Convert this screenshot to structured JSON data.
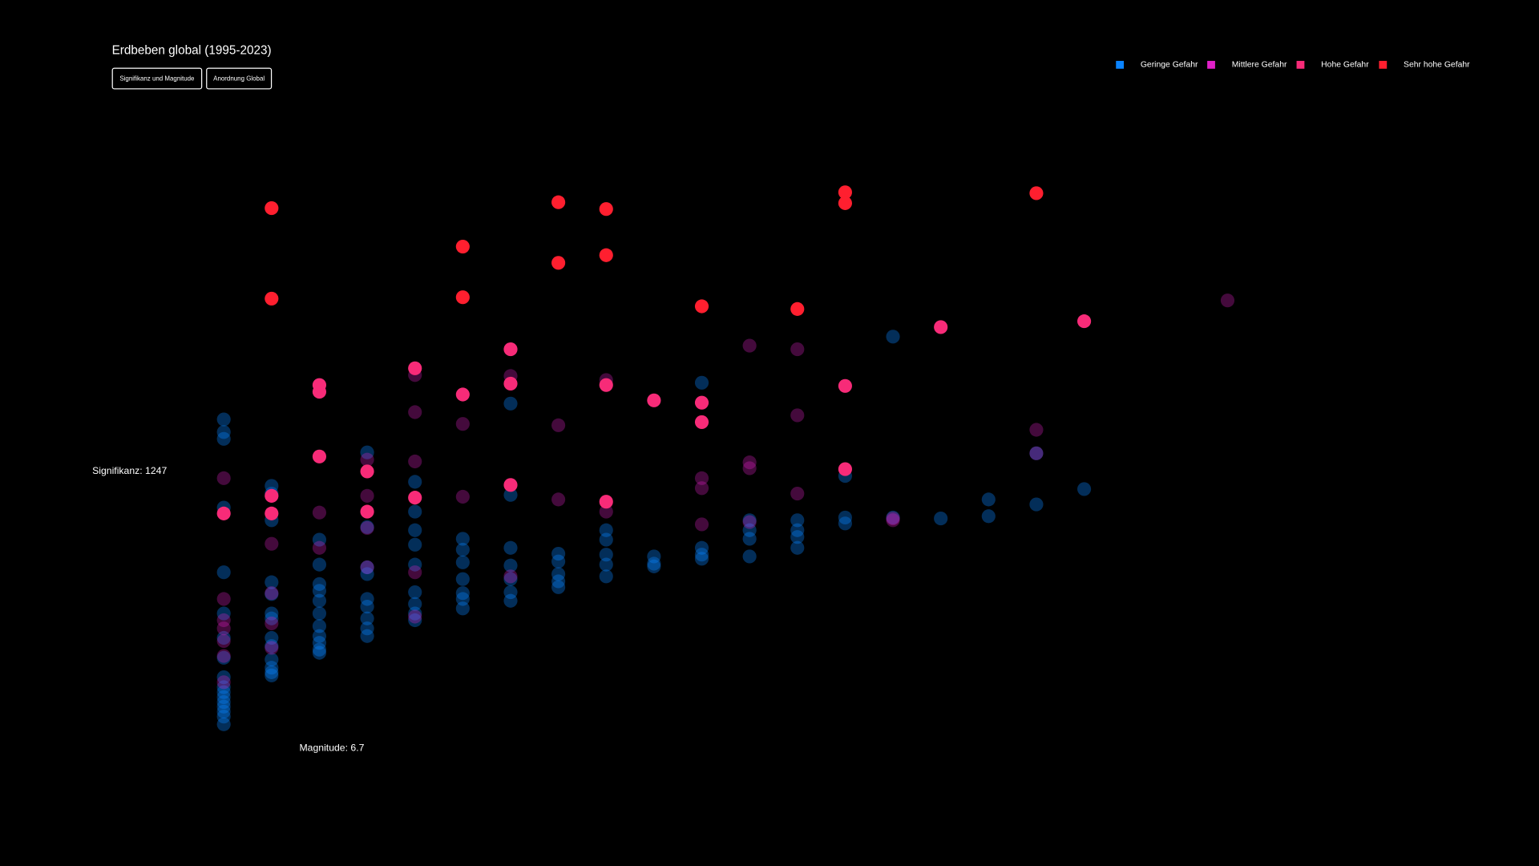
{
  "title": "Erdbeben global (1995-2023)",
  "controls": [
    "Signifikanz und Magnitude",
    "Anordnung Global"
  ],
  "chart_data": {
    "type": "scatter",
    "legend": "top-right",
    "xlim": [
      6.5,
      9.0
    ],
    "ylim": [
      600,
      2000
    ],
    "annotations": {
      "y": "Signifikanz: 1247",
      "x": "Magnitude: 6.7"
    },
    "series": [
      {
        "name": "Geringe Gefahr",
        "color": "#0a84ff",
        "x": [
          6.5,
          6.5,
          6.5,
          6.5,
          6.5,
          6.5,
          6.5,
          6.5,
          6.5,
          6.5,
          6.5,
          6.5,
          6.5,
          6.5,
          6.5,
          6.5,
          6.5,
          6.6,
          6.6,
          6.6,
          6.6,
          6.6,
          6.6,
          6.6,
          6.6,
          6.6,
          6.6,
          6.6,
          6.6,
          6.6,
          6.7,
          6.7,
          6.7,
          6.7,
          6.7,
          6.7,
          6.7,
          6.7,
          6.7,
          6.7,
          6.7,
          6.8,
          6.8,
          6.8,
          6.8,
          6.8,
          6.8,
          6.8,
          6.8,
          6.8,
          6.9,
          6.9,
          6.9,
          6.9,
          6.9,
          6.9,
          6.9,
          6.9,
          6.9,
          7.0,
          7.0,
          7.0,
          7.0,
          7.0,
          7.0,
          7.0,
          7.1,
          7.1,
          7.1,
          7.1,
          7.1,
          7.1,
          7.1,
          7.2,
          7.2,
          7.2,
          7.2,
          7.2,
          7.3,
          7.3,
          7.3,
          7.3,
          7.3,
          7.4,
          7.4,
          7.4,
          7.5,
          7.5,
          7.5,
          7.5,
          7.6,
          7.6,
          7.6,
          7.6,
          7.7,
          7.7,
          7.7,
          7.7,
          7.8,
          7.8,
          7.8,
          7.9,
          7.9,
          8.0,
          8.1,
          8.1,
          8.2,
          8.2,
          8.3
        ],
        "values": [
          1329,
          1301,
          1286,
          1134,
          991,
          900,
          846,
          802,
          759,
          737,
          715,
          694,
          672,
          655,
          704,
          726,
          683,
          1182,
          1165,
          1106,
          969,
          943,
          900,
          889,
          846,
          828,
          798,
          780,
          770,
          763,
          1063,
          1008,
          965,
          950,
          928,
          900,
          872,
          850,
          835,
          820,
          813,
          1256,
          1091,
          1002,
          987,
          932,
          915,
          889,
          867,
          850,
          1191,
          1125,
          1084,
          1052,
          1008,
          947,
          921,
          900,
          885,
          1065,
          1041,
          1013,
          976,
          945,
          932,
          911,
          1364,
          1162,
          1045,
          1006,
          976,
          947,
          928,
          1032,
          1015,
          987,
          971,
          958,
          1084,
          1063,
          1030,
          1008,
          982,
          1026,
          1010,
          1004,
          1410,
          1045,
          1030,
          1021,
          1106,
          1084,
          1065,
          1026,
          1106,
          1084,
          1069,
          1045,
          1204,
          1099,
          1112,
          1512,
          1112,
          1110,
          1115,
          1152,
          1254,
          1141,
          1175
        ]
      },
      {
        "name": "Mittlere Gefahr",
        "color": "#e020c8",
        "x": [
          6.5,
          6.5,
          6.5,
          6.5,
          6.5,
          6.5,
          6.5,
          6.6,
          6.6,
          6.6,
          6.6,
          6.6,
          6.7,
          6.7,
          6.8,
          6.8,
          6.8,
          6.8,
          6.9,
          6.9,
          6.9,
          6.9,
          6.9,
          7.0,
          7.0,
          7.1,
          7.1,
          7.2,
          7.2,
          7.3,
          7.3,
          7.5,
          7.5,
          7.5,
          7.6,
          7.6,
          7.6,
          7.6,
          7.7,
          7.7,
          7.7,
          7.9,
          7.9,
          8.2,
          8.2,
          8.6
        ],
        "values": [
          1199,
          885,
          839,
          806,
          932,
          867,
          748,
          1160,
          1054,
          878,
          824,
          945,
          1123,
          1045,
          1240,
          1160,
          1089,
          1002,
          1236,
          1427,
          1345,
          991,
          893,
          1158,
          1319,
          1425,
          982,
          1316,
          1152,
          1125,
          1416,
          1097,
          1177,
          1199,
          1492,
          1234,
          1221,
          1102,
          1165,
          1484,
          1338,
          1106,
          1110,
          1306,
          1254,
          1592
        ]
      },
      {
        "name": "Hohe Gefahr",
        "color": "#f72b78",
        "x": [
          6.5,
          6.6,
          6.6,
          6.7,
          6.7,
          6.7,
          6.8,
          6.8,
          6.9,
          6.9,
          7.0,
          7.1,
          7.1,
          7.1,
          7.3,
          7.3,
          7.4,
          7.5,
          7.5,
          7.8,
          7.8,
          8.0,
          8.3
        ],
        "values": [
          1121,
          1160,
          1121,
          1390,
          1405,
          1247,
          1214,
          1125,
          1156,
          1442,
          1384,
          1484,
          1408,
          1184,
          1405,
          1147,
          1371,
          1366,
          1323,
          1219,
          1403,
          1533,
          1546
        ]
      },
      {
        "name": "Sehr hohe Gefahr",
        "color": "#ff1f2f",
        "x": [
          6.6,
          6.6,
          7.0,
          7.0,
          7.2,
          7.2,
          7.3,
          7.3,
          7.5,
          7.7,
          7.8,
          7.8,
          8.2
        ],
        "values": [
          1796,
          1596,
          1711,
          1599,
          1809,
          1675,
          1794,
          1692,
          1579,
          1573,
          1831,
          1807,
          1829
        ]
      }
    ]
  }
}
